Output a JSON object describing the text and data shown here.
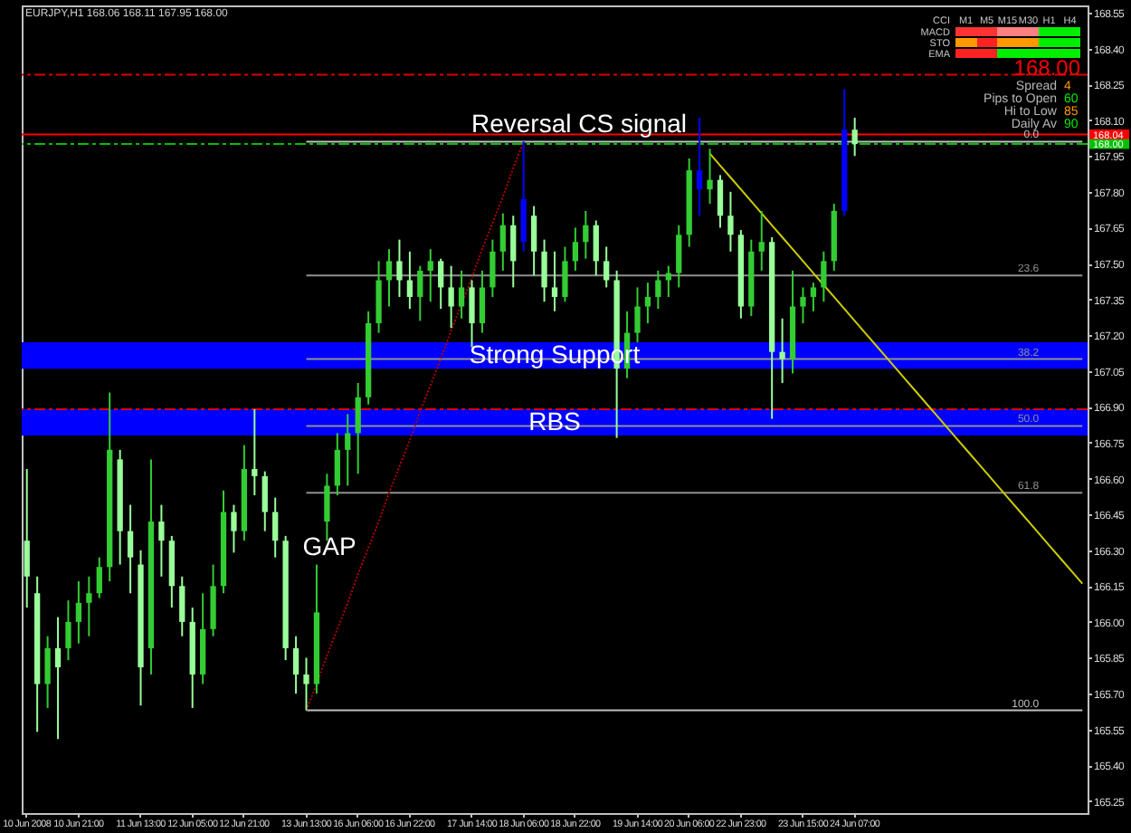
{
  "chart_data": {
    "type": "candlestick",
    "title": "EURJPY,H1 168.06 168.11 167.95 168.00",
    "categories": [
      "10 Jun 2008",
      null,
      null,
      null,
      null,
      "10 Jun 21:00",
      null,
      null,
      null,
      null,
      null,
      "11 Jun 13:00",
      null,
      null,
      null,
      null,
      "12 Jun 05:00",
      null,
      null,
      null,
      null,
      "12 Jun 21:00",
      null,
      null,
      null,
      null,
      null,
      "13 Jun 13:00",
      null,
      null,
      null,
      null,
      "16 Jun 06:00",
      null,
      null,
      null,
      null,
      "16 Jun 22:00",
      null,
      null,
      null,
      null,
      null,
      "17 Jun 14:00",
      null,
      null,
      null,
      null,
      "18 Jun 06:00",
      null,
      null,
      null,
      null,
      "18 Jun 22:00",
      null,
      null,
      null,
      null,
      null,
      "19 Jun 14:00",
      null,
      null,
      null,
      null,
      "20 Jun 06:00",
      null,
      null,
      null,
      null,
      "22 Jun 23:00",
      null,
      null,
      null,
      null,
      null,
      "23 Jun 15:00",
      null,
      null,
      null,
      null,
      "24 Jun 07:00",
      null,
      null,
      null,
      null,
      null,
      null,
      null,
      null,
      null,
      null,
      null,
      null,
      null,
      null,
      null,
      null,
      null,
      null,
      null,
      null,
      null,
      null
    ],
    "ylim": [
      165.2,
      168.58
    ],
    "yticks": [
      165.25,
      {
        "value": 165.4,
        "label": "165.40"
      },
      165.55,
      {
        "value": 165.7,
        "label": "165.70"
      },
      165.85,
      {
        "value": 166,
        "label": "166.00"
      },
      166.15,
      {
        "value": 166.3,
        "label": "166.30"
      },
      166.45,
      {
        "value": 166.6,
        "label": "166.60"
      },
      166.75,
      {
        "value": 166.9,
        "label": "166.90"
      },
      167.05,
      {
        "value": 167.2,
        "label": "167.20"
      },
      167.35,
      {
        "value": 167.5,
        "label": "167.50"
      },
      167.65,
      {
        "value": 167.8,
        "label": "167.80"
      },
      167.95,
      {
        "value": 168.1,
        "label": "168.10"
      },
      168.25,
      {
        "value": 168.4,
        "label": "168.40"
      },
      168.55
    ],
    "ohlc": [
      [
        166.34,
        166.64,
        166.06,
        166.19
      ],
      [
        166.12,
        166.19,
        165.54,
        165.74
      ],
      [
        165.74,
        165.94,
        165.64,
        165.89
      ],
      [
        165.89,
        166.02,
        165.51,
        165.81
      ],
      [
        165.89,
        166.09,
        165.84,
        166.0
      ],
      [
        166.0,
        166.17,
        165.91,
        166.08
      ],
      [
        166.08,
        166.19,
        165.94,
        166.12
      ],
      [
        166.12,
        166.27,
        166.1,
        166.23
      ],
      [
        166.23,
        166.96,
        166.17,
        166.72
      ],
      [
        166.68,
        166.72,
        166.24,
        166.38
      ],
      [
        166.38,
        166.49,
        166.12,
        166.27
      ],
      [
        166.24,
        166.3,
        165.65,
        165.81
      ],
      [
        165.89,
        166.68,
        165.78,
        166.42
      ],
      [
        166.42,
        166.49,
        166.19,
        166.34
      ],
      [
        166.34,
        166.36,
        166.06,
        166.15
      ],
      [
        166.15,
        166.19,
        165.94,
        166.0
      ],
      [
        166.0,
        166.06,
        165.64,
        165.78
      ],
      [
        165.78,
        166.12,
        165.74,
        165.97
      ],
      [
        165.97,
        166.24,
        165.94,
        166.15
      ],
      [
        166.15,
        166.55,
        166.12,
        166.46
      ],
      [
        166.46,
        166.49,
        166.29,
        166.38
      ],
      [
        166.38,
        166.74,
        166.34,
        166.64
      ],
      [
        166.64,
        166.89,
        166.53,
        166.61
      ],
      [
        166.61,
        166.63,
        166.38,
        166.46
      ],
      [
        166.46,
        166.52,
        166.27,
        166.34
      ],
      [
        166.34,
        166.36,
        165.84,
        165.89
      ],
      [
        165.89,
        165.94,
        165.7,
        165.78
      ],
      [
        165.78,
        165.85,
        165.63,
        165.74
      ],
      [
        165.74,
        166.24,
        165.7,
        166.04
      ],
      [
        166.42,
        166.62,
        166.34,
        166.57
      ],
      [
        166.57,
        166.79,
        166.53,
        166.72
      ],
      [
        166.72,
        166.87,
        166.57,
        166.79
      ],
      [
        166.79,
        167.0,
        166.62,
        166.94
      ],
      [
        166.94,
        167.3,
        166.91,
        167.25
      ],
      [
        167.25,
        167.51,
        167.21,
        167.43
      ],
      [
        167.43,
        167.56,
        167.32,
        167.51
      ],
      [
        167.51,
        167.6,
        167.36,
        167.43
      ],
      [
        167.43,
        167.55,
        167.31,
        167.36
      ],
      [
        167.36,
        167.49,
        167.26,
        167.47
      ],
      [
        167.47,
        167.56,
        167.34,
        167.51
      ],
      [
        167.51,
        167.52,
        167.31,
        167.4
      ],
      [
        167.4,
        167.49,
        167.23,
        167.32
      ],
      [
        167.32,
        167.47,
        167.27,
        167.4
      ],
      [
        167.4,
        167.43,
        167.15,
        167.25
      ],
      [
        167.25,
        167.47,
        167.21,
        167.4
      ],
      [
        167.4,
        167.6,
        167.36,
        167.55
      ],
      [
        167.55,
        167.71,
        167.47,
        167.66
      ],
      [
        167.66,
        167.7,
        167.4,
        167.51
      ],
      [
        167.59,
        168.01,
        167.55,
        167.77
      ],
      [
        167.7,
        167.74,
        167.45,
        167.55
      ],
      [
        167.55,
        167.6,
        167.34,
        167.4
      ],
      [
        167.4,
        167.55,
        167.3,
        167.36
      ],
      [
        167.36,
        167.57,
        167.34,
        167.51
      ],
      [
        167.51,
        167.65,
        167.47,
        167.59
      ],
      [
        167.59,
        167.72,
        167.52,
        167.66
      ],
      [
        167.66,
        167.68,
        167.45,
        167.51
      ],
      [
        167.51,
        167.57,
        167.4,
        167.43
      ],
      [
        167.43,
        167.47,
        166.77,
        167.06
      ],
      [
        167.06,
        167.3,
        167.02,
        167.21
      ],
      [
        167.21,
        167.4,
        167.17,
        167.32
      ],
      [
        167.32,
        167.42,
        167.25,
        167.36
      ],
      [
        167.36,
        167.47,
        167.31,
        167.43
      ],
      [
        167.43,
        167.49,
        167.36,
        167.46
      ],
      [
        167.46,
        167.66,
        167.4,
        167.62
      ],
      [
        167.62,
        167.94,
        167.57,
        167.89
      ],
      [
        167.89,
        168.11,
        167.7,
        167.81
      ],
      [
        167.81,
        167.98,
        167.75,
        167.85
      ],
      [
        167.85,
        167.87,
        167.65,
        167.7
      ],
      [
        167.7,
        167.8,
        167.55,
        167.62
      ],
      [
        167.62,
        167.64,
        167.27,
        167.32
      ],
      [
        167.32,
        167.6,
        167.28,
        167.55
      ],
      [
        167.55,
        167.72,
        167.47,
        167.59
      ],
      [
        167.59,
        167.61,
        166.85,
        167.13
      ],
      [
        167.13,
        167.27,
        167.0,
        167.1
      ],
      [
        167.1,
        167.47,
        167.04,
        167.32
      ],
      [
        167.32,
        167.4,
        167.25,
        167.36
      ],
      [
        167.36,
        167.42,
        167.3,
        167.4
      ],
      [
        167.4,
        167.55,
        167.34,
        167.51
      ],
      [
        167.51,
        167.75,
        167.47,
        167.72
      ],
      [
        167.72,
        168.23,
        167.7,
        168.06
      ],
      [
        168.06,
        168.11,
        167.95,
        168.0
      ],
      null,
      null,
      null,
      null,
      null,
      null,
      null,
      null,
      null,
      null,
      null,
      null,
      null,
      null,
      null,
      null,
      null,
      null,
      null,
      null,
      null,
      null
    ],
    "colors": [
      "#99ff99",
      "#99ff99",
      "#33cc33",
      "#99ff99",
      "#33cc33",
      "#33cc33",
      "#33cc33",
      "#33cc33",
      "#33cc33",
      "#99ff99",
      "#99ff99",
      "#99ff99",
      "#33cc33",
      "#99ff99",
      "#99ff99",
      "#99ff99",
      "#99ff99",
      "#33cc33",
      "#33cc33",
      "#33cc33",
      "#99ff99",
      "#33cc33",
      "#99ff99",
      "#99ff99",
      "#99ff99",
      "#99ff99",
      "#99ff99",
      "#99ff99",
      "#33cc33",
      "#33cc33",
      "#33cc33",
      "#33cc33",
      "#33cc33",
      "#33cc33",
      "#33cc33",
      "#33cc33",
      "#99ff99",
      "#99ff99",
      "#33cc33",
      "#33cc33",
      "#99ff99",
      "#99ff99",
      "#33cc33",
      "#99ff99",
      "#33cc33",
      "#33cc33",
      "#33cc33",
      "#99ff99",
      "#0000ff",
      "#99ff99",
      "#99ff99",
      "#99ff99",
      "#33cc33",
      "#33cc33",
      "#33cc33",
      "#99ff99",
      "#99ff99",
      "#99ff99",
      "#33cc33",
      "#33cc33",
      "#33cc33",
      "#33cc33",
      "#33cc33",
      "#33cc33",
      "#33cc33",
      "#0000ff",
      "#33cc33",
      "#99ff99",
      "#99ff99",
      "#99ff99",
      "#33cc33",
      "#33cc33",
      "#99ff99",
      "#99ff99",
      "#33cc33",
      "#33cc33",
      "#33cc33",
      "#33cc33",
      "#33cc33",
      "#0000ff",
      "#99ff99",
      null,
      null,
      null,
      null,
      null,
      null,
      null,
      null,
      null,
      null,
      null,
      null,
      null,
      null,
      null,
      null,
      null,
      null,
      null,
      null,
      null,
      null
    ],
    "series": [
      {
        "type": "line",
        "name": "0.0",
        "color": "#c0c0c0",
        "values": [
          null,
          null,
          null,
          null,
          null,
          null,
          null,
          null,
          null,
          null,
          null,
          null,
          null,
          null,
          null,
          null,
          null,
          null,
          null,
          null,
          null,
          null,
          null,
          null,
          null,
          null,
          null,
          168.01,
          168.01,
          168.01,
          168.01,
          168.01,
          168.01,
          168.01,
          168.01,
          168.01,
          168.01,
          168.01,
          168.01,
          168.01,
          168.01,
          168.01,
          168.01,
          168.01,
          168.01,
          168.01,
          168.01,
          168.01,
          168.01,
          168.01,
          168.01,
          168.01,
          168.01,
          168.01,
          168.01,
          168.01,
          168.01,
          168.01,
          168.01,
          168.01,
          168.01,
          168.01,
          168.01,
          168.01,
          168.01,
          168.01,
          168.01,
          168.01,
          168.01,
          168.01,
          168.01,
          168.01,
          168.01,
          168.01,
          168.01,
          168.01,
          168.01,
          168.01,
          168.01,
          168.01,
          168.01,
          168.01,
          168.01,
          168.01,
          168.01,
          168.01,
          168.01,
          168.01,
          168.01,
          168.01,
          168.01,
          168.01,
          168.01,
          168.01,
          168.01,
          168.01,
          168.01,
          168.01,
          168.01,
          168.01,
          168.01,
          168.01,
          168.01
        ]
      },
      {
        "type": "line",
        "name": "23.6",
        "color": "#909090",
        "values": [
          null,
          null,
          null,
          null,
          null,
          null,
          null,
          null,
          null,
          null,
          null,
          null,
          null,
          null,
          null,
          null,
          null,
          null,
          null,
          null,
          null,
          null,
          null,
          null,
          null,
          null,
          null,
          167.45,
          167.45,
          167.45,
          167.45,
          167.45,
          167.45,
          167.45,
          167.45,
          167.45,
          167.45,
          167.45,
          167.45,
          167.45,
          167.45,
          167.45,
          167.45,
          167.45,
          167.45,
          167.45,
          167.45,
          167.45,
          167.45,
          167.45,
          167.45,
          167.45,
          167.45,
          167.45,
          167.45,
          167.45,
          167.45,
          167.45,
          167.45,
          167.45,
          167.45,
          167.45,
          167.45,
          167.45,
          167.45,
          167.45,
          167.45,
          167.45,
          167.45,
          167.45,
          167.45,
          167.45,
          167.45,
          167.45,
          167.45,
          167.45,
          167.45,
          167.45,
          167.45,
          167.45,
          167.45,
          167.45,
          167.45,
          167.45,
          167.45,
          167.45,
          167.45,
          167.45,
          167.45,
          167.45,
          167.45,
          167.45,
          167.45,
          167.45,
          167.45,
          167.45,
          167.45,
          167.45,
          167.45,
          167.45,
          167.45,
          167.45,
          167.45
        ]
      },
      {
        "type": "line",
        "name": "38.2",
        "color": "#909090",
        "values": [
          null,
          null,
          null,
          null,
          null,
          null,
          null,
          null,
          null,
          null,
          null,
          null,
          null,
          null,
          null,
          null,
          null,
          null,
          null,
          null,
          null,
          null,
          null,
          null,
          null,
          null,
          null,
          167.1,
          167.1,
          167.1,
          167.1,
          167.1,
          167.1,
          167.1,
          167.1,
          167.1,
          167.1,
          167.1,
          167.1,
          167.1,
          167.1,
          167.1,
          167.1,
          167.1,
          167.1,
          167.1,
          167.1,
          167.1,
          167.1,
          167.1,
          167.1,
          167.1,
          167.1,
          167.1,
          167.1,
          167.1,
          167.1,
          167.1,
          167.1,
          167.1,
          167.1,
          167.1,
          167.1,
          167.1,
          167.1,
          167.1,
          167.1,
          167.1,
          167.1,
          167.1,
          167.1,
          167.1,
          167.1,
          167.1,
          167.1,
          167.1,
          167.1,
          167.1,
          167.1,
          167.1,
          167.1,
          167.1,
          167.1,
          167.1,
          167.1,
          167.1,
          167.1,
          167.1,
          167.1,
          167.1,
          167.1,
          167.1,
          167.1,
          167.1,
          167.1,
          167.1,
          167.1,
          167.1,
          167.1,
          167.1,
          167.1,
          167.1,
          167.1
        ]
      },
      {
        "type": "line",
        "name": "50.0",
        "color": "#909090",
        "values": [
          null,
          null,
          null,
          null,
          null,
          null,
          null,
          null,
          null,
          null,
          null,
          null,
          null,
          null,
          null,
          null,
          null,
          null,
          null,
          null,
          null,
          null,
          null,
          null,
          null,
          null,
          null,
          166.82,
          166.82,
          166.82,
          166.82,
          166.82,
          166.82,
          166.82,
          166.82,
          166.82,
          166.82,
          166.82,
          166.82,
          166.82,
          166.82,
          166.82,
          166.82,
          166.82,
          166.82,
          166.82,
          166.82,
          166.82,
          166.82,
          166.82,
          166.82,
          166.82,
          166.82,
          166.82,
          166.82,
          166.82,
          166.82,
          166.82,
          166.82,
          166.82,
          166.82,
          166.82,
          166.82,
          166.82,
          166.82,
          166.82,
          166.82,
          166.82,
          166.82,
          166.82,
          166.82,
          166.82,
          166.82,
          166.82,
          166.82,
          166.82,
          166.82,
          166.82,
          166.82,
          166.82,
          166.82,
          166.82,
          166.82,
          166.82,
          166.82,
          166.82,
          166.82,
          166.82,
          166.82,
          166.82,
          166.82,
          166.82,
          166.82,
          166.82,
          166.82,
          166.82,
          166.82,
          166.82,
          166.82,
          166.82,
          166.82,
          166.82,
          166.82
        ]
      },
      {
        "type": "line",
        "name": "61.8",
        "color": "#909090",
        "values": [
          null,
          null,
          null,
          null,
          null,
          null,
          null,
          null,
          null,
          null,
          null,
          null,
          null,
          null,
          null,
          null,
          null,
          null,
          null,
          null,
          null,
          null,
          null,
          null,
          null,
          null,
          null,
          166.54,
          166.54,
          166.54,
          166.54,
          166.54,
          166.54,
          166.54,
          166.54,
          166.54,
          166.54,
          166.54,
          166.54,
          166.54,
          166.54,
          166.54,
          166.54,
          166.54,
          166.54,
          166.54,
          166.54,
          166.54,
          166.54,
          166.54,
          166.54,
          166.54,
          166.54,
          166.54,
          166.54,
          166.54,
          166.54,
          166.54,
          166.54,
          166.54,
          166.54,
          166.54,
          166.54,
          166.54,
          166.54,
          166.54,
          166.54,
          166.54,
          166.54,
          166.54,
          166.54,
          166.54,
          166.54,
          166.54,
          166.54,
          166.54,
          166.54,
          166.54,
          166.54,
          166.54,
          166.54,
          166.54,
          166.54,
          166.54,
          166.54,
          166.54,
          166.54,
          166.54,
          166.54,
          166.54,
          166.54,
          166.54,
          166.54,
          166.54,
          166.54,
          166.54,
          166.54,
          166.54,
          166.54,
          166.54,
          166.54,
          166.54,
          166.54
        ]
      },
      {
        "type": "line",
        "name": "100.0",
        "color": "#c0c0c0",
        "values": [
          null,
          null,
          null,
          null,
          null,
          null,
          null,
          null,
          null,
          null,
          null,
          null,
          null,
          null,
          null,
          null,
          null,
          null,
          null,
          null,
          null,
          null,
          null,
          null,
          null,
          null,
          null,
          165.63,
          165.63,
          165.63,
          165.63,
          165.63,
          165.63,
          165.63,
          165.63,
          165.63,
          165.63,
          165.63,
          165.63,
          165.63,
          165.63,
          165.63,
          165.63,
          165.63,
          165.63,
          165.63,
          165.63,
          165.63,
          165.63,
          165.63,
          165.63,
          165.63,
          165.63,
          165.63,
          165.63,
          165.63,
          165.63,
          165.63,
          165.63,
          165.63,
          165.63,
          165.63,
          165.63,
          165.63,
          165.63,
          165.63,
          165.63,
          165.63,
          165.63,
          165.63,
          165.63,
          165.63,
          165.63,
          165.63,
          165.63,
          165.63,
          165.63,
          165.63,
          165.63,
          165.63,
          165.63,
          165.63,
          165.63,
          165.63,
          165.63,
          165.63,
          165.63,
          165.63,
          165.63,
          165.63,
          165.63,
          165.63,
          165.63,
          165.63,
          165.63,
          165.63,
          165.63,
          165.63,
          165.63,
          165.63,
          165.63,
          165.63,
          165.63
        ]
      },
      {
        "type": "line",
        "color": "#b00000",
        "line_style": "dotted",
        "values": [
          null,
          null,
          null,
          null,
          null,
          null,
          null,
          null,
          null,
          null,
          null,
          null,
          null,
          null,
          null,
          null,
          null,
          null,
          null,
          null,
          null,
          null,
          null,
          null,
          null,
          null,
          null,
          165.63,
          165.74,
          165.86,
          165.97,
          166.08,
          166.2,
          166.31,
          166.42,
          166.54,
          166.65,
          166.76,
          166.88,
          166.99,
          167.1,
          167.22,
          167.33,
          167.44,
          167.56,
          167.67,
          167.78,
          167.9,
          168.01,
          null,
          null,
          null,
          null,
          null,
          null,
          null,
          null,
          null,
          null,
          null,
          null,
          null,
          null,
          null,
          null,
          null,
          null,
          null,
          null,
          null,
          null,
          null,
          null,
          null,
          null,
          null,
          null,
          null,
          null,
          null,
          null,
          null,
          null,
          null,
          null,
          null,
          null,
          null,
          null,
          null,
          null,
          null,
          null,
          null,
          null,
          null,
          null,
          null,
          null,
          null,
          null,
          null,
          null
        ]
      },
      {
        "type": "line",
        "color": "#cccc00",
        "values": [
          null,
          null,
          null,
          null,
          null,
          null,
          null,
          null,
          null,
          null,
          null,
          null,
          null,
          null,
          null,
          null,
          null,
          null,
          null,
          null,
          null,
          null,
          null,
          null,
          null,
          null,
          null,
          null,
          null,
          null,
          null,
          null,
          null,
          null,
          null,
          null,
          null,
          null,
          null,
          null,
          null,
          null,
          null,
          null,
          null,
          null,
          null,
          null,
          null,
          null,
          null,
          null,
          null,
          null,
          null,
          null,
          null,
          null,
          null,
          null,
          null,
          null,
          null,
          null,
          null,
          null,
          167.96,
          167.91,
          167.86,
          167.81,
          167.76,
          167.71,
          167.66,
          167.61,
          167.56,
          167.51,
          167.46,
          167.41,
          167.36,
          167.31,
          167.26,
          167.21,
          167.16,
          167.11,
          167.06,
          167.01,
          166.96,
          166.91,
          166.86,
          166.81,
          166.76,
          166.71,
          166.66,
          166.61,
          166.56,
          166.51,
          166.46,
          166.41,
          166.36,
          166.31,
          166.26,
          166.21,
          166.16
        ]
      }
    ],
    "ref_lines": [
      {
        "axis": "y",
        "value": 168.29,
        "color": "#dd0000",
        "line_style": "dashed"
      },
      {
        "axis": "y",
        "value": 166.89,
        "color": "#dd0000",
        "line_style": "dashed"
      },
      {
        "axis": "y",
        "value": 168.04,
        "label": "168.04",
        "color": "#ff0000"
      },
      {
        "axis": "y",
        "value": 168.0,
        "label": "168.00",
        "color": "#00c000",
        "line_style": "dashed"
      }
    ],
    "bands": [
      {
        "axis": "y",
        "from": 167.06,
        "to": 167.17,
        "label": "Strong Support",
        "color": "#0000ff"
      },
      {
        "axis": "y",
        "from": 166.78,
        "to": 166.89,
        "label": "RBS",
        "color": "#0000ff"
      }
    ],
    "annotations": [
      "Reversal CS signal",
      {
        "text": "GAP",
        "y": 166.31
      },
      "M1",
      "M5",
      "M15",
      "M30",
      "H1",
      "H4",
      "CCI",
      "MACD",
      "STO",
      "EMA",
      "168.00",
      "Spread",
      "4",
      "Pips to Open",
      "60",
      "Hi to Low",
      "85",
      "Daily Av",
      "90"
    ]
  }
}
